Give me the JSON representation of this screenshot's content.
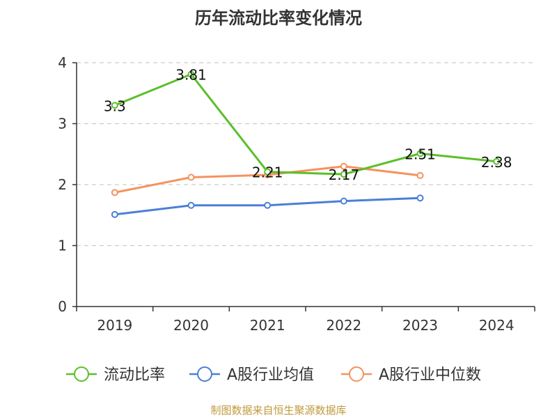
{
  "chart_data": {
    "type": "line",
    "title": "历年流动比率变化情况",
    "categories": [
      "2019",
      "2020",
      "2021",
      "2022",
      "2023",
      "2024"
    ],
    "ylim": [
      0,
      4
    ],
    "yticks": [
      0,
      1,
      2,
      3,
      4
    ],
    "grid": true,
    "legend_position": "bottom",
    "series": [
      {
        "name": "流动比率",
        "color": "#5bbf2a",
        "values": [
          3.3,
          3.81,
          2.21,
          2.17,
          2.51,
          2.38
        ],
        "labels": [
          "3.3",
          "3.81",
          "2.21",
          "2.17",
          "2.51",
          "2.38"
        ]
      },
      {
        "name": "A股行业均值",
        "color": "#4a7fd8",
        "values": [
          1.51,
          1.66,
          1.66,
          1.73,
          1.78,
          null
        ]
      },
      {
        "name": "A股行业中位数",
        "color": "#f5925e",
        "values": [
          1.87,
          2.12,
          2.16,
          2.3,
          2.15,
          null
        ]
      }
    ]
  },
  "footer": "制图数据来自恒生聚源数据库"
}
